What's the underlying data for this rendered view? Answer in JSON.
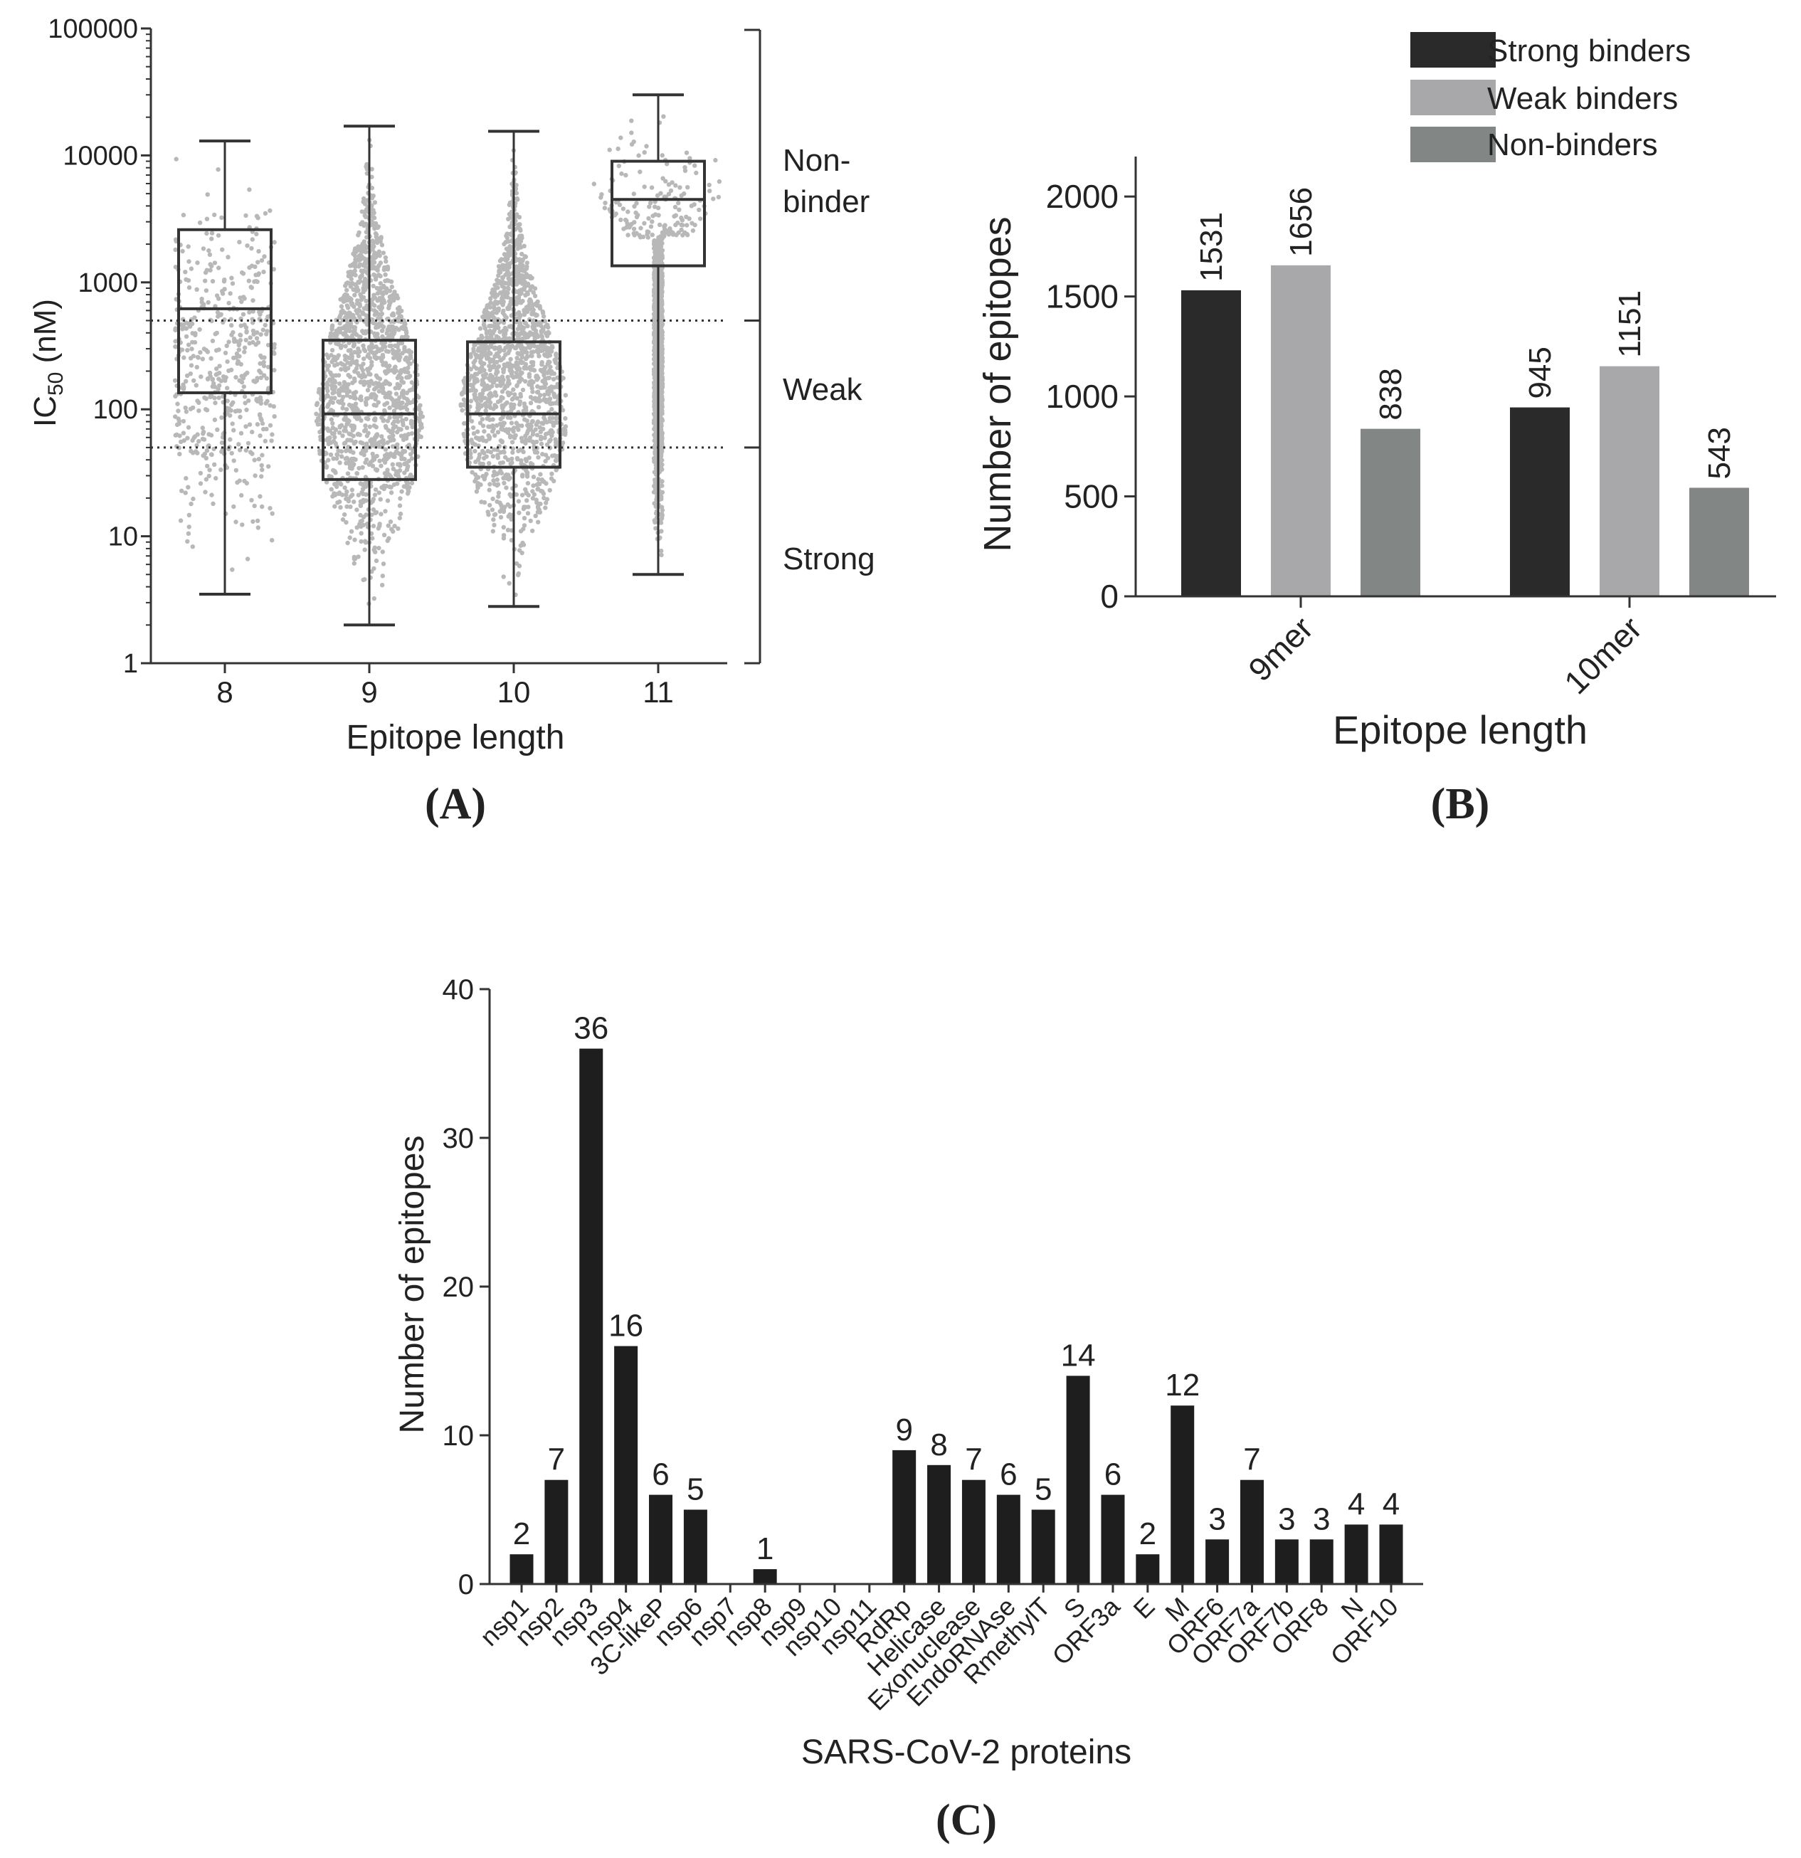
{
  "colors": {
    "strong": "#2a2a2a",
    "weak": "#a8a8ab",
    "non": "#828685",
    "dot": "#b8b8b8",
    "axis": "#333333",
    "bar_c": "#1e1e1e"
  },
  "chart_data": [
    {
      "id": "A",
      "type": "box-scatter",
      "panel_label": "(A)",
      "xlabel": "Epitope length",
      "ylabel_main": "IC",
      "ylabel_sub": "50",
      "ylabel_unit": " (nM)",
      "yscale": "log",
      "ylim": [
        1,
        100000
      ],
      "yticks": [
        1,
        10,
        100,
        1000,
        10000,
        100000
      ],
      "ytick_labels": [
        "1",
        "10",
        "100",
        "1000",
        "10000",
        "100000"
      ],
      "categories": [
        "8",
        "9",
        "10",
        "11"
      ],
      "boxes": [
        {
          "category": "8",
          "min": 3.5,
          "q1": 135,
          "median": 620,
          "q3": 2600,
          "max": 13000
        },
        {
          "category": "9",
          "min": 2,
          "q1": 28,
          "median": 92,
          "q3": 350,
          "max": 17000
        },
        {
          "category": "10",
          "min": 2.8,
          "q1": 35,
          "median": 92,
          "q3": 340,
          "max": 15500
        },
        {
          "category": "11",
          "min": 5,
          "q1": 1350,
          "median": 4500,
          "q3": 9000,
          "max": 30000
        }
      ],
      "thresholds": [
        500,
        50
      ],
      "region_labels": [
        {
          "lines": [
            "Non-",
            "binder"
          ]
        },
        {
          "lines": [
            "Weak"
          ]
        },
        {
          "lines": [
            "Strong"
          ]
        }
      ]
    },
    {
      "id": "B",
      "type": "bar",
      "panel_label": "(B)",
      "xlabel": "Epitope length",
      "ylabel": "Number of epitopes",
      "ylim": [
        0,
        2200
      ],
      "yticks": [
        0,
        500,
        1000,
        1500,
        2000
      ],
      "ytick_labels": [
        "0",
        "500",
        "1000",
        "1500",
        "2000"
      ],
      "categories": [
        "9mer",
        "10mer"
      ],
      "series": [
        {
          "name": "Strong binders",
          "values": [
            1531,
            945
          ]
        },
        {
          "name": "Weak binders",
          "values": [
            1656,
            1151
          ]
        },
        {
          "name": "Non-binders",
          "values": [
            838,
            543
          ]
        }
      ],
      "legend_position": "top-right"
    },
    {
      "id": "C",
      "type": "bar",
      "panel_label": "(C)",
      "xlabel": "SARS-CoV-2 proteins",
      "ylabel": "Number of epitopes",
      "ylim": [
        0,
        40
      ],
      "yticks": [
        0,
        10,
        20,
        30,
        40
      ],
      "ytick_labels": [
        "0",
        "10",
        "20",
        "30",
        "40"
      ],
      "categories": [
        "nsp1",
        "nsp2",
        "nsp3",
        "nsp4",
        "3C-likeP",
        "nsp6",
        "nsp7",
        "nsp8",
        "nsp9",
        "nsp10",
        "nsp11",
        "RdRp",
        "Helicase",
        "Exonuclease",
        "EndoRNAse",
        "RmethylT",
        "S",
        "ORF3a",
        "E",
        "M",
        "ORF6",
        "ORF7a",
        "ORF7b",
        "ORF8",
        "N",
        "ORF10"
      ],
      "values": [
        2,
        7,
        36,
        16,
        6,
        5,
        0,
        1,
        0,
        0,
        0,
        9,
        8,
        7,
        6,
        5,
        14,
        6,
        2,
        12,
        3,
        7,
        3,
        3,
        4,
        4
      ],
      "value_labels": [
        "2",
        "7",
        "36",
        "16",
        "6",
        "5",
        "",
        "1",
        "",
        "",
        "",
        "9",
        "8",
        "7",
        "6",
        "5",
        "14",
        "6",
        "2",
        "12",
        "3",
        "7",
        "3",
        "3",
        "4",
        "4"
      ]
    }
  ]
}
